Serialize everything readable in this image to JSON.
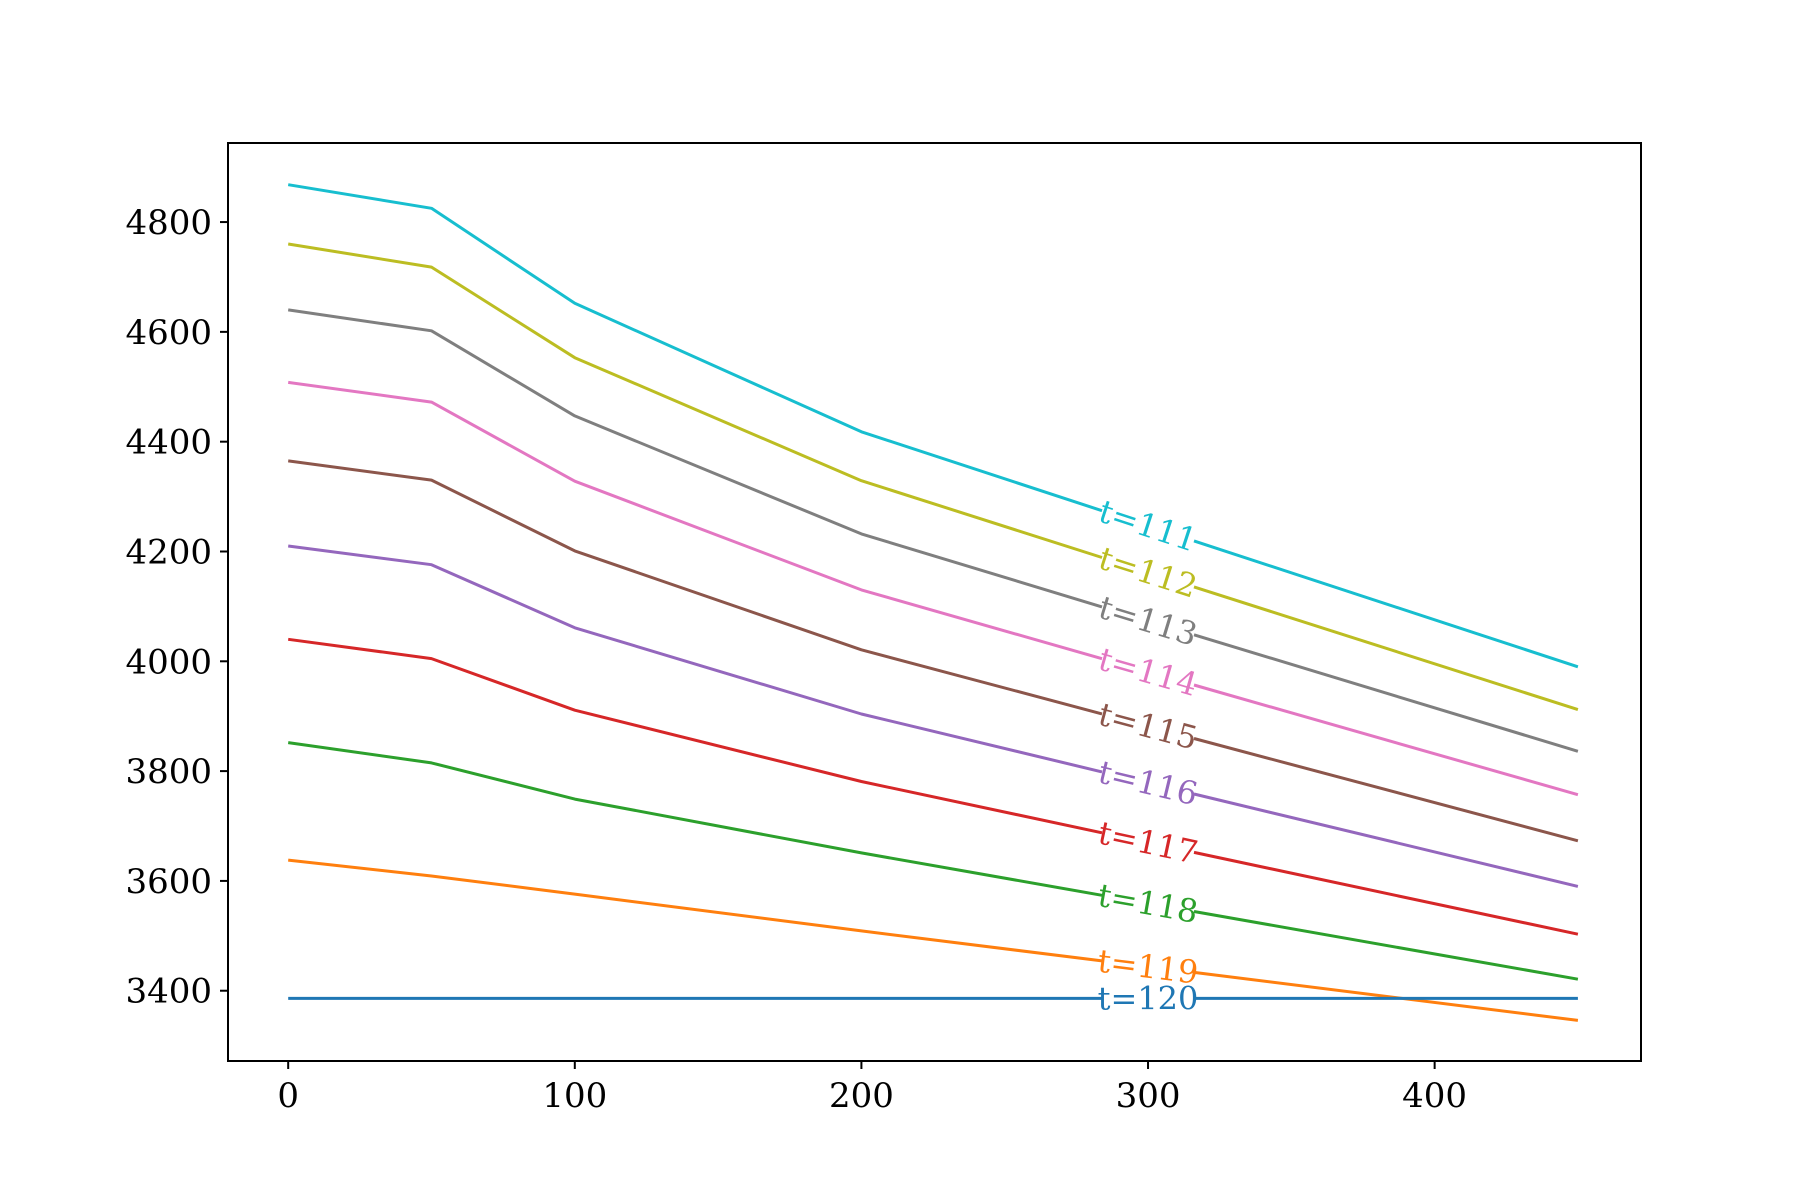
{
  "chart_data": {
    "type": "line",
    "title": "",
    "xlabel": "",
    "ylabel": "",
    "xlim": [
      -21,
      472
    ],
    "ylim": [
      3272,
      4944
    ],
    "xticks": [
      0,
      100,
      200,
      300,
      400
    ],
    "yticks": [
      3400,
      3600,
      3800,
      4000,
      4200,
      4400,
      4600,
      4800
    ],
    "grid": false,
    "legend": "none",
    "x": [
      0,
      50,
      100,
      200,
      450
    ],
    "series": [
      {
        "name": "t=111",
        "color": "#17becf",
        "values": [
          4868,
          4825,
          4652,
          4418,
          3990
        ]
      },
      {
        "name": "t=112",
        "color": "#bcbd22",
        "values": [
          4760,
          4718,
          4553,
          4329,
          3912
        ]
      },
      {
        "name": "t=113",
        "color": "#7f7f7f",
        "values": [
          4640,
          4602,
          4447,
          4232,
          3836
        ]
      },
      {
        "name": "t=114",
        "color": "#e377c2",
        "values": [
          4508,
          4472,
          4328,
          4130,
          3757
        ]
      },
      {
        "name": "t=115",
        "color": "#8c564b",
        "values": [
          4365,
          4330,
          4201,
          4021,
          3673
        ]
      },
      {
        "name": "t=116",
        "color": "#9467bd",
        "values": [
          4210,
          4176,
          4061,
          3904,
          3590
        ]
      },
      {
        "name": "t=117",
        "color": "#d62728",
        "values": [
          4040,
          4005,
          3911,
          3781,
          3503
        ]
      },
      {
        "name": "t=118",
        "color": "#2ca02c",
        "values": [
          3852,
          3815,
          3749,
          3651,
          3421
        ]
      },
      {
        "name": "t=119",
        "color": "#ff7f0e",
        "values": [
          3638,
          3609,
          3576,
          3509,
          3346
        ]
      },
      {
        "name": "t=120",
        "color": "#1f77b4",
        "values": [
          3386,
          3386,
          3386,
          3386,
          3386
        ]
      }
    ],
    "label_x": 300
  }
}
